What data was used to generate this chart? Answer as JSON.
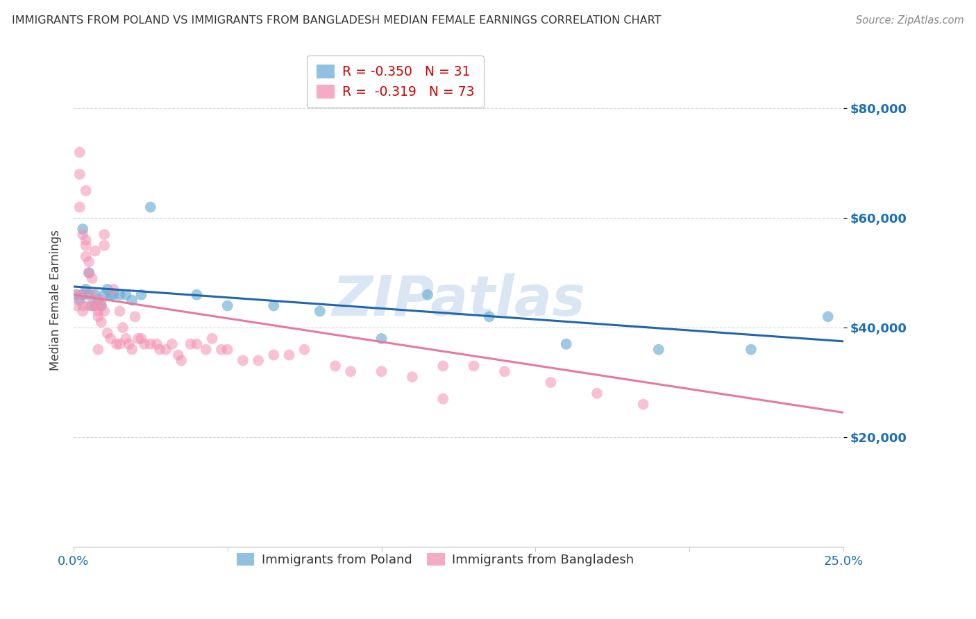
{
  "title": "IMMIGRANTS FROM POLAND VS IMMIGRANTS FROM BANGLADESH MEDIAN FEMALE EARNINGS CORRELATION CHART",
  "source": "Source: ZipAtlas.com",
  "ylabel": "Median Female Earnings",
  "ytick_values": [
    20000,
    40000,
    60000,
    80000
  ],
  "ylim": [
    0,
    90000
  ],
  "xlim": [
    0.0,
    0.25
  ],
  "xticks": [
    0.0,
    0.05,
    0.1,
    0.15,
    0.2,
    0.25
  ],
  "xticklabels": [
    "0.0%",
    "",
    "",
    "",
    "",
    "25.0%"
  ],
  "legend_line1": "R = -0.350   N = 31",
  "legend_line2": "R =  -0.319   N = 73",
  "legend_labels": [
    "Immigrants from Poland",
    "Immigrants from Bangladesh"
  ],
  "poland_color": "#6baed6",
  "bangladesh_color": "#f48fb1",
  "poland_line_color": "#2166ac",
  "bangladesh_line_color": "#e8799c",
  "poland_scatter_x": [
    0.001,
    0.002,
    0.003,
    0.004,
    0.005,
    0.006,
    0.007,
    0.008,
    0.009,
    0.01,
    0.011,
    0.012,
    0.013,
    0.015,
    0.017,
    0.019,
    0.022,
    0.025,
    0.04,
    0.05,
    0.065,
    0.08,
    0.1,
    0.115,
    0.135,
    0.16,
    0.19,
    0.22,
    0.005,
    0.003,
    0.245
  ],
  "poland_scatter_y": [
    46000,
    45000,
    46000,
    47000,
    46000,
    44000,
    46000,
    45000,
    44000,
    46000,
    47000,
    46000,
    46000,
    46000,
    46000,
    45000,
    46000,
    62000,
    46000,
    44000,
    44000,
    43000,
    38000,
    46000,
    42000,
    37000,
    36000,
    36000,
    50000,
    58000,
    42000
  ],
  "bangladesh_scatter_x": [
    0.001,
    0.001,
    0.002,
    0.002,
    0.003,
    0.003,
    0.003,
    0.004,
    0.004,
    0.005,
    0.005,
    0.005,
    0.006,
    0.006,
    0.007,
    0.007,
    0.008,
    0.008,
    0.009,
    0.009,
    0.009,
    0.01,
    0.01,
    0.011,
    0.012,
    0.013,
    0.014,
    0.015,
    0.016,
    0.017,
    0.018,
    0.019,
    0.02,
    0.021,
    0.022,
    0.023,
    0.025,
    0.027,
    0.028,
    0.03,
    0.032,
    0.034,
    0.035,
    0.038,
    0.04,
    0.043,
    0.045,
    0.048,
    0.05,
    0.055,
    0.06,
    0.065,
    0.07,
    0.075,
    0.085,
    0.09,
    0.1,
    0.11,
    0.12,
    0.13,
    0.14,
    0.155,
    0.17,
    0.185,
    0.002,
    0.003,
    0.004,
    0.004,
    0.007,
    0.008,
    0.01,
    0.015,
    0.12
  ],
  "bangladesh_scatter_y": [
    44000,
    46000,
    72000,
    68000,
    46000,
    44000,
    43000,
    65000,
    55000,
    52000,
    50000,
    44000,
    49000,
    46000,
    54000,
    44000,
    43000,
    42000,
    45000,
    44000,
    41000,
    57000,
    43000,
    39000,
    38000,
    47000,
    37000,
    43000,
    40000,
    38000,
    37000,
    36000,
    42000,
    38000,
    38000,
    37000,
    37000,
    37000,
    36000,
    36000,
    37000,
    35000,
    34000,
    37000,
    37000,
    36000,
    38000,
    36000,
    36000,
    34000,
    34000,
    35000,
    35000,
    36000,
    33000,
    32000,
    32000,
    31000,
    33000,
    33000,
    32000,
    30000,
    28000,
    26000,
    62000,
    57000,
    53000,
    56000,
    44000,
    36000,
    55000,
    37000,
    27000
  ],
  "poland_line_x": [
    0.0,
    0.25
  ],
  "poland_line_y": [
    47500,
    37500
  ],
  "bangladesh_line_x": [
    0.0,
    0.25
  ],
  "bangladesh_line_y": [
    46000,
    24500
  ],
  "watermark": "ZIPatlas",
  "background_color": "#ffffff",
  "grid_color": "#cccccc",
  "axis_color": "#1a6fb5",
  "title_color": "#333333",
  "source_color": "#888888"
}
